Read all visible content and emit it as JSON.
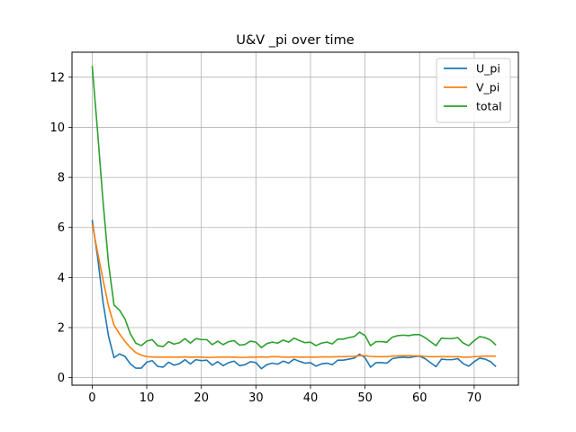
{
  "chart_data": {
    "type": "line",
    "title": "U&V _pi over time",
    "xlabel": "",
    "ylabel": "",
    "xlim": [
      -3.7,
      78.1
    ],
    "ylim": [
      -0.3,
      13.0
    ],
    "x_ticks": [
      0,
      10,
      20,
      30,
      40,
      50,
      60,
      70
    ],
    "y_ticks": [
      0,
      2,
      4,
      6,
      8,
      10,
      12
    ],
    "grid": true,
    "legend_position": "top-right",
    "x": [
      0,
      1,
      2,
      3,
      4,
      5,
      6,
      7,
      8,
      9,
      10,
      11,
      12,
      13,
      14,
      15,
      16,
      17,
      18,
      19,
      20,
      21,
      22,
      23,
      24,
      25,
      26,
      27,
      28,
      29,
      30,
      31,
      32,
      33,
      34,
      35,
      36,
      37,
      38,
      39,
      40,
      41,
      42,
      43,
      44,
      45,
      46,
      47,
      48,
      49,
      50,
      51,
      52,
      53,
      54,
      55,
      56,
      57,
      58,
      59,
      60,
      61,
      62,
      63,
      64,
      65,
      66,
      67,
      68,
      69,
      70,
      71,
      72,
      73,
      74
    ],
    "series": [
      {
        "name": "U_pi",
        "color": "#1f77b4",
        "values": [
          6.3,
          4.8,
          3.0,
          1.65,
          0.8,
          0.95,
          0.85,
          0.55,
          0.38,
          0.38,
          0.62,
          0.68,
          0.45,
          0.42,
          0.62,
          0.5,
          0.56,
          0.72,
          0.55,
          0.72,
          0.68,
          0.7,
          0.5,
          0.64,
          0.48,
          0.6,
          0.66,
          0.48,
          0.52,
          0.64,
          0.6,
          0.36,
          0.52,
          0.58,
          0.54,
          0.66,
          0.58,
          0.74,
          0.65,
          0.58,
          0.6,
          0.46,
          0.55,
          0.58,
          0.52,
          0.7,
          0.7,
          0.74,
          0.78,
          0.94,
          0.8,
          0.42,
          0.6,
          0.6,
          0.58,
          0.76,
          0.8,
          0.82,
          0.8,
          0.84,
          0.86,
          0.76,
          0.6,
          0.44,
          0.74,
          0.72,
          0.72,
          0.76,
          0.56,
          0.46,
          0.64,
          0.78,
          0.74,
          0.64,
          0.44
        ]
      },
      {
        "name": "V_pi",
        "color": "#ff7f0e",
        "values": [
          6.15,
          5.0,
          3.9,
          2.85,
          2.1,
          1.75,
          1.45,
          1.2,
          1.0,
          0.9,
          0.84,
          0.83,
          0.82,
          0.82,
          0.82,
          0.82,
          0.82,
          0.83,
          0.82,
          0.82,
          0.82,
          0.81,
          0.81,
          0.82,
          0.82,
          0.82,
          0.82,
          0.81,
          0.81,
          0.82,
          0.82,
          0.83,
          0.82,
          0.84,
          0.84,
          0.82,
          0.82,
          0.83,
          0.82,
          0.82,
          0.82,
          0.82,
          0.83,
          0.83,
          0.83,
          0.84,
          0.84,
          0.85,
          0.85,
          0.88,
          0.88,
          0.85,
          0.84,
          0.84,
          0.84,
          0.86,
          0.87,
          0.88,
          0.88,
          0.87,
          0.87,
          0.85,
          0.84,
          0.84,
          0.84,
          0.84,
          0.84,
          0.84,
          0.82,
          0.82,
          0.84,
          0.85,
          0.86,
          0.86,
          0.86
        ]
      },
      {
        "name": "total",
        "color": "#2ca02c",
        "values": [
          12.45,
          9.8,
          7.0,
          4.55,
          2.9,
          2.7,
          2.35,
          1.75,
          1.38,
          1.28,
          1.46,
          1.52,
          1.28,
          1.24,
          1.44,
          1.34,
          1.4,
          1.56,
          1.38,
          1.56,
          1.52,
          1.52,
          1.32,
          1.46,
          1.32,
          1.44,
          1.48,
          1.3,
          1.33,
          1.46,
          1.42,
          1.2,
          1.36,
          1.42,
          1.38,
          1.5,
          1.42,
          1.58,
          1.48,
          1.4,
          1.42,
          1.28,
          1.38,
          1.42,
          1.35,
          1.54,
          1.54,
          1.6,
          1.64,
          1.82,
          1.68,
          1.28,
          1.44,
          1.44,
          1.42,
          1.62,
          1.68,
          1.7,
          1.68,
          1.72,
          1.72,
          1.6,
          1.44,
          1.28,
          1.58,
          1.56,
          1.56,
          1.6,
          1.38,
          1.28,
          1.48,
          1.64,
          1.6,
          1.5,
          1.3
        ]
      }
    ]
  }
}
